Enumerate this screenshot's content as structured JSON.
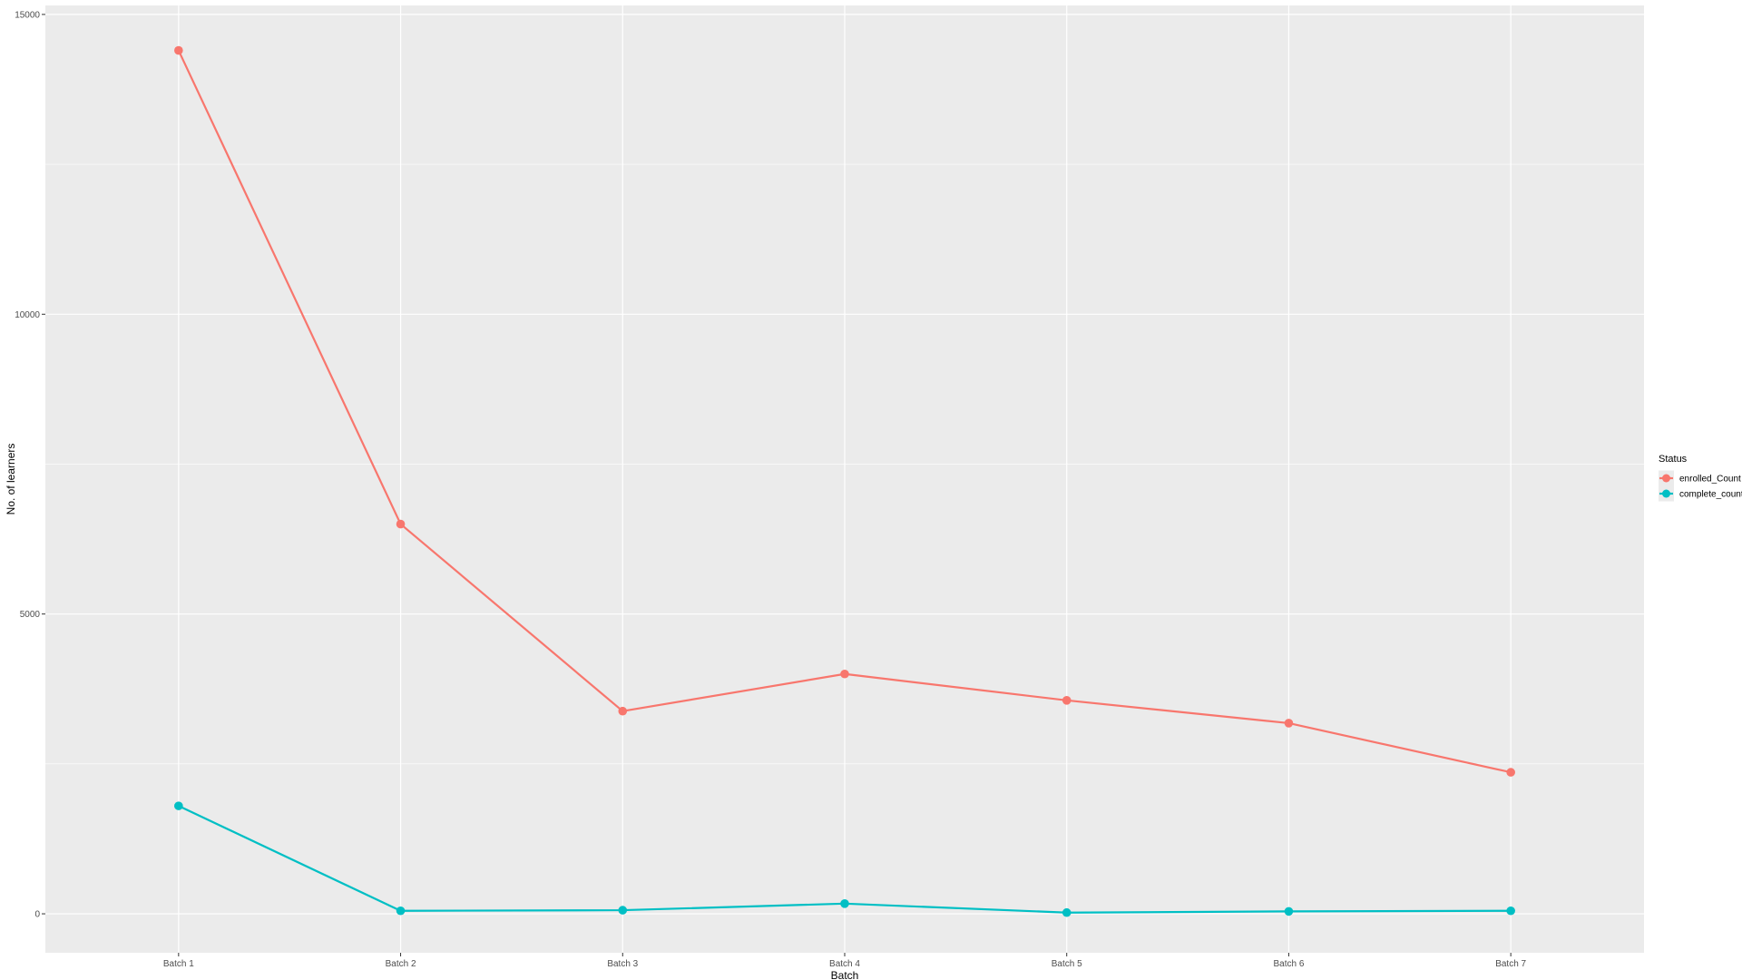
{
  "chart_data": {
    "type": "line",
    "xlabel": "Batch",
    "ylabel": "No. of learners",
    "categories": [
      "Batch 1",
      "Batch 2",
      "Batch 3",
      "Batch 4",
      "Batch 5",
      "Batch 6",
      "Batch 7"
    ],
    "ylim": [
      -650,
      15150
    ],
    "yticks": [
      0,
      5000,
      10000,
      15000
    ],
    "grid": true,
    "legend": {
      "title": "Status",
      "position": "right"
    },
    "series": [
      {
        "name": "enrolled_Count",
        "color": "#F8766D",
        "values": [
          14400,
          6500,
          3380,
          4000,
          3560,
          3180,
          2360
        ]
      },
      {
        "name": "complete_count",
        "color": "#00BFC4",
        "values": [
          1800,
          50,
          60,
          170,
          20,
          40,
          50
        ]
      }
    ],
    "panel_background": "#EBEBEB",
    "grid_color": "#FFFFFF"
  }
}
